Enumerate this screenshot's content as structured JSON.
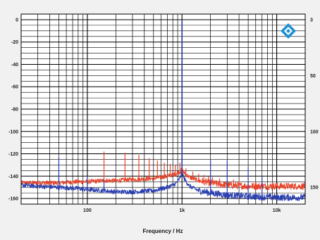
{
  "chart_data": {
    "type": "line",
    "title": "",
    "xlabel": "Frequency / Hz",
    "ylabel": "",
    "x_scale": "log",
    "xlim": [
      20,
      20000
    ],
    "ylim": [
      -165,
      5
    ],
    "grid": true,
    "x_tick_labels": [
      {
        "value": 100,
        "label": "100"
      },
      {
        "value": 1000,
        "label": "1k"
      },
      {
        "value": 10000,
        "label": "10k"
      }
    ],
    "y_tick_labels_left": [
      {
        "value": 0,
        "label": "0"
      },
      {
        "value": -20,
        "label": "-20"
      },
      {
        "value": -40,
        "label": "-40"
      },
      {
        "value": -60,
        "label": "-60"
      },
      {
        "value": -80,
        "label": "-80"
      },
      {
        "value": -100,
        "label": "-100"
      },
      {
        "value": -120,
        "label": "-120"
      },
      {
        "value": -140,
        "label": "-140"
      },
      {
        "value": -160,
        "label": "-160"
      }
    ],
    "y_tick_labels_right": [
      {
        "value": 0,
        "label": "3"
      },
      {
        "value": -50,
        "label": "50"
      },
      {
        "value": -100,
        "label": "100"
      },
      {
        "value": -150,
        "label": "150"
      }
    ],
    "series": [
      {
        "color": "#e8442a",
        "noise_floor": [
          [
            20,
            -146
          ],
          [
            30,
            -146
          ],
          [
            50,
            -146
          ],
          [
            80,
            -145
          ],
          [
            100,
            -145
          ],
          [
            150,
            -144
          ],
          [
            200,
            -144
          ],
          [
            300,
            -143
          ],
          [
            500,
            -142
          ],
          [
            700,
            -140
          ],
          [
            850,
            -138
          ],
          [
            950,
            -136
          ],
          [
            1000,
            -134
          ],
          [
            1050,
            -137
          ],
          [
            1200,
            -141
          ],
          [
            1500,
            -144
          ],
          [
            2000,
            -146
          ],
          [
            3000,
            -148
          ],
          [
            5000,
            -149
          ],
          [
            10000,
            -149
          ],
          [
            20000,
            -149
          ]
        ],
        "spikes": [
          [
            50,
            -140
          ],
          [
            150,
            -118
          ],
          [
            250,
            -119
          ],
          [
            350,
            -121
          ],
          [
            450,
            -124
          ],
          [
            550,
            -126
          ],
          [
            650,
            -128
          ],
          [
            750,
            -129
          ],
          [
            850,
            -130
          ],
          [
            950,
            -128
          ],
          [
            1000,
            0
          ],
          [
            1100,
            -133
          ],
          [
            1300,
            -136
          ],
          [
            1500,
            -138
          ],
          [
            1700,
            -139
          ],
          [
            1900,
            -140
          ],
          [
            2100,
            -141
          ],
          [
            2500,
            -142
          ],
          [
            3000,
            -143
          ],
          [
            3500,
            -143
          ],
          [
            4000,
            -144
          ],
          [
            5000,
            -145
          ],
          [
            6000,
            -145
          ],
          [
            7000,
            -146
          ],
          [
            9000,
            -146
          ]
        ]
      },
      {
        "color": "#2a3fb0",
        "noise_floor": [
          [
            20,
            -148
          ],
          [
            30,
            -149
          ],
          [
            50,
            -150
          ],
          [
            80,
            -151
          ],
          [
            100,
            -152
          ],
          [
            150,
            -153
          ],
          [
            200,
            -154
          ],
          [
            300,
            -154
          ],
          [
            500,
            -153
          ],
          [
            700,
            -150
          ],
          [
            850,
            -147
          ],
          [
            950,
            -142
          ],
          [
            1000,
            -136
          ],
          [
            1050,
            -142
          ],
          [
            1200,
            -149
          ],
          [
            1500,
            -153
          ],
          [
            2000,
            -155
          ],
          [
            3000,
            -157
          ],
          [
            5000,
            -158
          ],
          [
            10000,
            -159
          ],
          [
            20000,
            -159
          ]
        ],
        "spikes": [
          [
            50,
            -123
          ],
          [
            100,
            -140
          ],
          [
            150,
            -143
          ],
          [
            1000,
            0
          ],
          [
            2000,
            -126
          ],
          [
            3000,
            -126
          ],
          [
            5000,
            -132
          ],
          [
            7000,
            -140
          ]
        ]
      }
    ]
  },
  "logo": {
    "icon": "rohde-schwarz-logo-icon",
    "color": "#1f8fd1"
  }
}
